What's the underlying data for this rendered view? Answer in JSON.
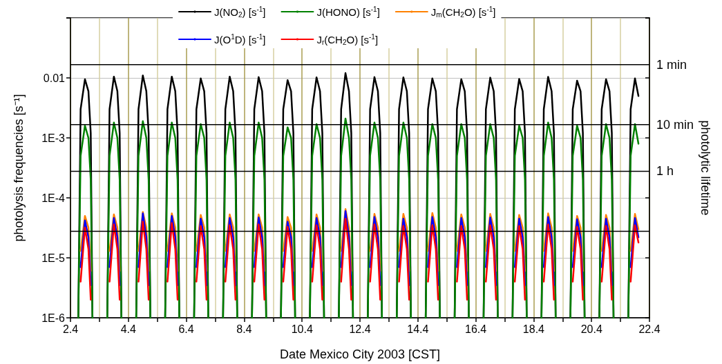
{
  "chart_data": {
    "type": "line",
    "xlabel": "Date Mexico City 2003 [CST]",
    "ylabel": "photolysis frequencies [s⁻¹]",
    "y2label": "photolytic lifetime",
    "log": "y",
    "grid": true,
    "legend": "top",
    "xlim": [
      "2003-04-02",
      "2003-04-22"
    ],
    "xticks": [
      {
        "value": "2003-04-02",
        "label": "2.4"
      },
      {
        "value": "2003-04-03",
        "label": null
      },
      {
        "value": "2003-04-04",
        "label": "4.4"
      },
      {
        "value": "2003-04-05",
        "label": null
      },
      {
        "value": "2003-04-06",
        "label": "6.4"
      },
      {
        "value": "2003-04-07",
        "label": null
      },
      {
        "value": "2003-04-08",
        "label": "8.4"
      },
      {
        "value": "2003-04-09",
        "label": null
      },
      {
        "value": "2003-04-10",
        "label": "10.4"
      },
      {
        "value": "2003-04-11",
        "label": null
      },
      {
        "value": "2003-04-12",
        "label": "12.4"
      },
      {
        "value": "2003-04-13",
        "label": null
      },
      {
        "value": "2003-04-14",
        "label": "14.4"
      },
      {
        "value": "2003-04-15",
        "label": null
      },
      {
        "value": "2003-04-16",
        "label": "16.4"
      },
      {
        "value": "2003-04-17",
        "label": null
      },
      {
        "value": "2003-04-18",
        "label": "18.4"
      },
      {
        "value": "2003-04-19",
        "label": null
      },
      {
        "value": "2003-04-20",
        "label": "20.4"
      },
      {
        "value": "2003-04-21",
        "label": null
      },
      {
        "value": "2003-04-22",
        "label": "22.4"
      }
    ],
    "ylim": [
      1e-06,
      0.1
    ],
    "yticks": [
      {
        "value": 1e-06,
        "label": "1E-6"
      },
      {
        "value": 1e-05,
        "label": "1E-5"
      },
      {
        "value": 0.0001,
        "label": "1E-4"
      },
      {
        "value": 0.001,
        "label": "1E-3"
      },
      0.01
    ],
    "ref_lines": [
      {
        "axis": "y",
        "value": 0.0166667,
        "label": "1 min",
        "color": "#000000"
      },
      {
        "axis": "y",
        "value": 0.00166667,
        "label": "10 min",
        "color": "#000000"
      },
      {
        "axis": "y",
        "value": 0.000277778,
        "label": "1 h",
        "color": "#000000"
      },
      {
        "axis": "y",
        "value": 2.77778e-05,
        "color": "#000000"
      }
    ],
    "x": [
      "2003-04-02T06:29",
      "2003-04-02T08:24",
      "2003-04-02T12:00",
      "2003-04-02T14:53",
      "2003-04-02T16:48",
      "2003-04-02T18:14",
      "2003-04-02T21:36",
      "2003-04-03T06:29",
      "2003-04-03T08:24",
      "2003-04-03T12:00",
      "2003-04-03T14:53",
      "2003-04-03T16:48",
      "2003-04-03T18:14",
      "2003-04-03T21:36",
      "2003-04-04T06:29",
      "2003-04-04T08:24",
      "2003-04-04T12:00",
      "2003-04-04T14:53",
      "2003-04-04T16:48",
      "2003-04-04T18:14",
      "2003-04-04T21:36",
      "2003-04-05T06:29",
      "2003-04-05T08:24",
      "2003-04-05T12:00",
      "2003-04-05T14:53",
      "2003-04-05T16:48",
      "2003-04-05T18:14",
      "2003-04-05T21:36",
      "2003-04-06T06:29",
      "2003-04-06T08:24",
      "2003-04-06T12:00",
      "2003-04-06T14:53",
      "2003-04-06T16:48",
      "2003-04-06T18:14",
      "2003-04-06T21:36",
      "2003-04-07T06:29",
      "2003-04-07T08:24",
      "2003-04-07T12:00",
      "2003-04-07T14:53",
      "2003-04-07T16:48",
      "2003-04-07T18:14",
      "2003-04-07T21:36",
      "2003-04-08T06:29",
      "2003-04-08T08:24",
      "2003-04-08T12:00",
      "2003-04-08T14:53",
      "2003-04-08T16:48",
      "2003-04-08T18:14",
      "2003-04-08T21:36",
      "2003-04-09T06:29",
      "2003-04-09T08:24",
      "2003-04-09T12:00",
      "2003-04-09T14:53",
      "2003-04-09T16:48",
      "2003-04-09T18:14",
      "2003-04-09T21:36",
      "2003-04-10T06:29",
      "2003-04-10T08:24",
      "2003-04-10T12:00",
      "2003-04-10T14:53",
      "2003-04-10T16:48",
      "2003-04-10T18:14",
      "2003-04-10T21:36",
      "2003-04-11T06:29",
      "2003-04-11T08:24",
      "2003-04-11T12:00",
      "2003-04-11T14:53",
      "2003-04-11T16:48",
      "2003-04-11T18:14",
      "2003-04-11T21:36",
      "2003-04-12T06:29",
      "2003-04-12T08:24",
      "2003-04-12T12:00",
      "2003-04-12T14:53",
      "2003-04-12T16:48",
      "2003-04-12T18:14",
      "2003-04-12T21:36",
      "2003-04-13T06:29",
      "2003-04-13T08:24",
      "2003-04-13T12:00",
      "2003-04-13T14:53",
      "2003-04-13T16:48",
      "2003-04-13T18:14",
      "2003-04-13T21:36",
      "2003-04-14T06:29",
      "2003-04-14T08:24",
      "2003-04-14T12:00",
      "2003-04-14T14:53",
      "2003-04-14T16:48",
      "2003-04-14T18:14",
      "2003-04-14T21:36",
      "2003-04-15T06:29",
      "2003-04-15T08:24",
      "2003-04-15T12:00",
      "2003-04-15T14:53",
      "2003-04-15T16:48",
      "2003-04-15T18:14",
      "2003-04-15T21:36",
      "2003-04-16T06:29",
      "2003-04-16T08:24",
      "2003-04-16T12:00",
      "2003-04-16T14:53",
      "2003-04-16T16:48",
      "2003-04-16T18:14",
      "2003-04-16T21:36",
      "2003-04-17T06:29",
      "2003-04-17T08:24",
      "2003-04-17T12:00",
      "2003-04-17T14:53",
      "2003-04-17T16:48",
      "2003-04-17T18:14",
      "2003-04-17T21:36",
      "2003-04-18T06:29",
      "2003-04-18T08:24",
      "2003-04-18T12:00",
      "2003-04-18T14:53",
      "2003-04-18T16:48",
      "2003-04-18T18:14",
      "2003-04-18T21:36",
      "2003-04-19T06:29",
      "2003-04-19T08:24",
      "2003-04-19T12:00",
      "2003-04-19T14:53",
      "2003-04-19T16:48",
      "2003-04-19T18:14",
      "2003-04-19T21:36",
      "2003-04-20T06:29",
      "2003-04-20T08:24",
      "2003-04-20T12:00",
      "2003-04-20T14:53",
      "2003-04-20T16:48",
      "2003-04-20T18:14",
      "2003-04-20T21:36",
      "2003-04-21T06:29",
      "2003-04-21T08:24",
      "2003-04-21T12:00",
      "2003-04-21T14:53"
    ],
    "series": [
      {
        "name": "J(NO$_{2}$) [s$^{-1}$]",
        "color": "#000000",
        "values": [
          1e-06,
          0.003,
          0.0095,
          0.006,
          0.0012,
          1e-06,
          null,
          1e-06,
          0.003,
          0.0105,
          0.006,
          0.0012,
          1e-06,
          null,
          1e-06,
          0.003,
          0.011,
          0.006,
          0.0012,
          1e-06,
          null,
          1e-06,
          0.003,
          0.0105,
          0.006,
          0.0012,
          1e-06,
          null,
          1e-06,
          0.003,
          0.0098,
          0.006,
          0.0012,
          1e-06,
          null,
          1e-06,
          0.003,
          0.0105,
          0.006,
          0.0012,
          1e-06,
          null,
          1e-06,
          0.003,
          0.0103,
          0.006,
          0.0012,
          1e-06,
          null,
          1e-06,
          0.003,
          0.0092,
          0.006,
          0.0012,
          1e-06,
          null,
          1e-06,
          0.003,
          0.0102,
          0.006,
          0.0012,
          1e-06,
          null,
          1e-06,
          0.003,
          0.012,
          0.006,
          0.0012,
          1e-06,
          null,
          1e-06,
          0.003,
          0.0103,
          0.006,
          0.0012,
          1e-06,
          null,
          1e-06,
          0.003,
          0.0102,
          0.006,
          0.0012,
          1e-06,
          null,
          1e-06,
          0.003,
          0.0098,
          0.006,
          0.0012,
          1e-06,
          null,
          1e-06,
          0.003,
          0.0095,
          0.006,
          0.0012,
          1e-06,
          null,
          1e-06,
          0.003,
          0.0101,
          0.006,
          0.0012,
          1e-06,
          null,
          1e-06,
          0.003,
          0.0096,
          0.006,
          0.0012,
          1e-06,
          null,
          1e-06,
          0.003,
          0.0104,
          0.006,
          0.0012,
          1e-06,
          null,
          1e-06,
          0.003,
          0.009,
          0.006,
          0.0012,
          1e-06,
          null,
          1e-06,
          0.003,
          0.0095,
          0.006,
          0.0012,
          1e-06,
          null,
          1e-06,
          0.003,
          0.0098,
          0.005
        ]
      },
      {
        "name": "J(HONO) [s$^{-1}$]",
        "color": "#008000",
        "values": [
          1e-06,
          0.0005,
          0.0016,
          0.001,
          0.0002,
          1e-06,
          null,
          1e-06,
          0.0005,
          0.0018,
          0.001,
          0.0002,
          1e-06,
          null,
          1e-06,
          0.0005,
          0.0019,
          0.001,
          0.0002,
          1e-06,
          null,
          1e-06,
          0.0005,
          0.0018,
          0.001,
          0.0002,
          1e-06,
          null,
          1e-06,
          0.0005,
          0.0017,
          0.001,
          0.0002,
          1e-06,
          null,
          1e-06,
          0.0005,
          0.0018,
          0.001,
          0.0002,
          1e-06,
          null,
          1e-06,
          0.0005,
          0.0018,
          0.001,
          0.0002,
          1e-06,
          null,
          1e-06,
          0.0005,
          0.0015,
          0.001,
          0.0002,
          1e-06,
          null,
          1e-06,
          0.0005,
          0.0017,
          0.001,
          0.0002,
          1e-06,
          null,
          1e-06,
          0.0005,
          0.0021,
          0.001,
          0.0002,
          1e-06,
          null,
          1e-06,
          0.0005,
          0.0018,
          0.001,
          0.0002,
          1e-06,
          null,
          1e-06,
          0.0005,
          0.0018,
          0.001,
          0.0002,
          1e-06,
          null,
          1e-06,
          0.0005,
          0.0017,
          0.001,
          0.0002,
          1e-06,
          null,
          1e-06,
          0.0005,
          0.0017,
          0.001,
          0.0002,
          1e-06,
          null,
          1e-06,
          0.0005,
          0.0017,
          0.001,
          0.0002,
          1e-06,
          null,
          1e-06,
          0.0005,
          0.0016,
          0.001,
          0.0002,
          1e-06,
          null,
          1e-06,
          0.0005,
          0.0018,
          0.001,
          0.0002,
          1e-06,
          null,
          1e-06,
          0.0005,
          0.0016,
          0.001,
          0.0002,
          1e-06,
          null,
          1e-06,
          0.0005,
          0.0017,
          0.001,
          0.0002,
          1e-06,
          null,
          1e-06,
          0.0005,
          0.0017,
          0.0008
        ]
      },
      {
        "name": "J$_{m}$(CH$_{2}$O) [s$^{-1}$]",
        "color": "#ff8000",
        "values": [
          null,
          1.3e-05,
          5e-05,
          3.2e-05,
          6e-06,
          null,
          null,
          null,
          1.3e-05,
          5.3e-05,
          3.2e-05,
          6e-06,
          null,
          null,
          null,
          1.3e-05,
          5.8e-05,
          3.2e-05,
          6e-06,
          null,
          null,
          null,
          1.3e-05,
          5.5e-05,
          3.2e-05,
          6e-06,
          null,
          null,
          null,
          1.3e-05,
          5.2e-05,
          3.2e-05,
          6e-06,
          null,
          null,
          null,
          1.3e-05,
          5.3e-05,
          3.2e-05,
          6e-06,
          null,
          null,
          null,
          1.3e-05,
          5.3e-05,
          3.2e-05,
          6e-06,
          null,
          null,
          null,
          1.3e-05,
          4.8e-05,
          3.2e-05,
          6e-06,
          null,
          null,
          null,
          1.3e-05,
          5.3e-05,
          3.2e-05,
          6e-06,
          null,
          null,
          null,
          1.3e-05,
          6.5e-05,
          3.2e-05,
          6e-06,
          null,
          null,
          null,
          1.3e-05,
          5.4e-05,
          3.2e-05,
          6e-06,
          null,
          null,
          null,
          1.3e-05,
          5.4e-05,
          3.2e-05,
          6e-06,
          null,
          null,
          null,
          1.3e-05,
          5.6e-05,
          3.2e-05,
          6e-06,
          null,
          null,
          null,
          1.3e-05,
          5.3e-05,
          3.2e-05,
          6e-06,
          null,
          null,
          null,
          1.3e-05,
          5.4e-05,
          3.2e-05,
          6e-06,
          null,
          null,
          null,
          1.3e-05,
          5.2e-05,
          3.2e-05,
          6e-06,
          null,
          null,
          null,
          1.3e-05,
          5.5e-05,
          3.2e-05,
          6e-06,
          null,
          null,
          null,
          1.3e-05,
          5e-05,
          3.2e-05,
          6e-06,
          null,
          null,
          null,
          1.3e-05,
          5.2e-05,
          3.2e-05,
          6e-06,
          null,
          null,
          null,
          1.3e-05,
          5.4e-05,
          3e-05
        ]
      },
      {
        "name": "J(O$^{1}$D) [s$^{-1}$]",
        "color": "#0000ff",
        "values": [
          null,
          7e-06,
          4.2e-05,
          2.2e-05,
          3.5e-06,
          null,
          null,
          null,
          7e-06,
          4.6e-05,
          2.2e-05,
          3.5e-06,
          null,
          null,
          null,
          7e-06,
          5.5e-05,
          2.2e-05,
          3.5e-06,
          null,
          null,
          null,
          7e-06,
          5e-05,
          2.2e-05,
          3.5e-06,
          null,
          null,
          null,
          7e-06,
          4.5e-05,
          2.2e-05,
          3.5e-06,
          null,
          null,
          null,
          7e-06,
          4.6e-05,
          2.2e-05,
          3.5e-06,
          null,
          null,
          null,
          7e-06,
          4.7e-05,
          2.2e-05,
          3.5e-06,
          null,
          null,
          null,
          7e-06,
          4e-05,
          2.2e-05,
          3.5e-06,
          null,
          null,
          null,
          7e-06,
          4.6e-05,
          2.2e-05,
          3.5e-06,
          null,
          null,
          null,
          7e-06,
          6e-05,
          2.2e-05,
          3.5e-06,
          null,
          null,
          null,
          7e-06,
          4.8e-05,
          2.2e-05,
          3.5e-06,
          null,
          null,
          null,
          7e-06,
          4.5e-05,
          2.2e-05,
          3.5e-06,
          null,
          null,
          null,
          7e-06,
          4.8e-05,
          2.2e-05,
          3.5e-06,
          null,
          null,
          null,
          7e-06,
          4.6e-05,
          2.2e-05,
          3.5e-06,
          null,
          null,
          null,
          7e-06,
          4.7e-05,
          2.2e-05,
          3.5e-06,
          null,
          null,
          null,
          7e-06,
          4.5e-05,
          2.2e-05,
          3.5e-06,
          null,
          null,
          null,
          7e-06,
          4.8e-05,
          2.2e-05,
          3.5e-06,
          null,
          null,
          null,
          7e-06,
          4.4e-05,
          2.2e-05,
          3.5e-06,
          null,
          null,
          null,
          7e-06,
          4.5e-05,
          2.2e-05,
          3.5e-06,
          null,
          null,
          null,
          7e-06,
          4.6e-05,
          2.2e-05
        ]
      },
      {
        "name": "J$_{r}$(CH$_{2}$O) [s$^{-1}$]",
        "color": "#ff0000",
        "values": [
          null,
          4e-06,
          3.2e-05,
          1.4e-05,
          2e-06,
          null,
          null,
          null,
          4e-06,
          3.6e-05,
          1.4e-05,
          2e-06,
          null,
          null,
          null,
          4e-06,
          4e-05,
          1.4e-05,
          2e-06,
          null,
          null,
          null,
          4e-06,
          3.8e-05,
          1.4e-05,
          2e-06,
          null,
          null,
          null,
          4e-06,
          3.4e-05,
          1.4e-05,
          2e-06,
          null,
          null,
          null,
          4e-06,
          3.5e-05,
          1.4e-05,
          2e-06,
          null,
          null,
          null,
          4e-06,
          3.6e-05,
          1.4e-05,
          2e-06,
          null,
          null,
          null,
          4e-06,
          3.3e-05,
          1.4e-05,
          2e-06,
          null,
          null,
          null,
          4e-06,
          3.5e-05,
          1.4e-05,
          2e-06,
          null,
          null,
          null,
          4e-06,
          4.5e-05,
          1.4e-05,
          2e-06,
          null,
          null,
          null,
          4e-06,
          3.6e-05,
          1.4e-05,
          2e-06,
          null,
          null,
          null,
          4e-06,
          3.4e-05,
          1.4e-05,
          2e-06,
          null,
          null,
          null,
          4e-06,
          3.5e-05,
          1.4e-05,
          2e-06,
          null,
          null,
          null,
          4e-06,
          3.4e-05,
          1.4e-05,
          2e-06,
          null,
          null,
          null,
          4e-06,
          3.5e-05,
          1.4e-05,
          2e-06,
          null,
          null,
          null,
          4e-06,
          3.4e-05,
          1.4e-05,
          2e-06,
          null,
          null,
          null,
          4e-06,
          3.6e-05,
          1.4e-05,
          2e-06,
          null,
          null,
          null,
          4e-06,
          3.3e-05,
          1.4e-05,
          2e-06,
          null,
          null,
          null,
          4e-06,
          3.4e-05,
          1.4e-05,
          2e-06,
          null,
          null,
          null,
          4e-06,
          3.5e-05,
          1.8e-05
        ]
      }
    ]
  }
}
